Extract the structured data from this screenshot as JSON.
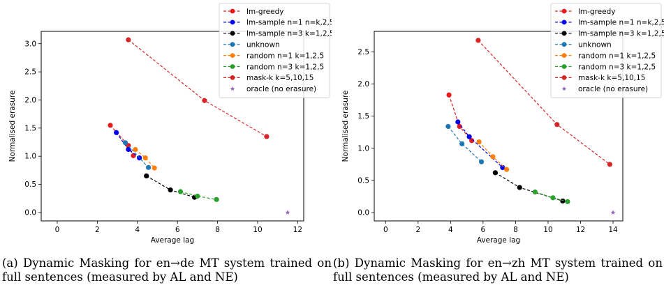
{
  "chart_data": [
    {
      "type": "line",
      "xlabel": "Average lag",
      "ylabel": "Normalised erasure",
      "xlim": [
        -0.8,
        12.3
      ],
      "ylim": [
        -0.15,
        3.22
      ],
      "xticks": [
        0,
        2,
        4,
        6,
        8,
        10,
        12
      ],
      "yticks": [
        0.0,
        0.5,
        1.0,
        1.5,
        2.0,
        2.5,
        3.0
      ],
      "ytick_labels": [
        "0.0",
        "0.5",
        "1.0",
        "1.5",
        "2.0",
        "2.5",
        "3.0"
      ],
      "legend_position": "top-right",
      "caption": "(a) Dynamic Masking for en→de MT system trained on full sentences (measured by AL and NE)",
      "series": [
        {
          "name": "lm-greedy",
          "color": "#e41a1c",
          "dashed": true,
          "x": [
            2.65,
            3.55,
            3.8
          ],
          "y": [
            1.55,
            1.19,
            1.01
          ]
        },
        {
          "name": "lm-sample n=1 n=k,2,5",
          "color": "#0000ee",
          "dashed": true,
          "x": [
            2.95,
            3.55,
            4.1
          ],
          "y": [
            1.42,
            1.12,
            0.97
          ]
        },
        {
          "name": "lm-sample n=3 k=1,2,5",
          "color": "#000000",
          "dashed": true,
          "x": [
            4.45,
            5.65,
            6.85
          ],
          "y": [
            0.65,
            0.4,
            0.27
          ]
        },
        {
          "name": "unknown",
          "color": "#1f77b4",
          "dashed": true,
          "x": [
            3.4,
            4.55
          ],
          "y": [
            1.24,
            0.8
          ]
        },
        {
          "name": "random n=1 k=1,2,5",
          "color": "#ff7f0e",
          "dashed": true,
          "x": [
            3.9,
            4.4,
            4.85
          ],
          "y": [
            1.12,
            0.97,
            0.79
          ]
        },
        {
          "name": "random n=3 k=1,2,5",
          "color": "#2ca02c",
          "dashed": true,
          "x": [
            6.15,
            7.0,
            7.95
          ],
          "y": [
            0.37,
            0.29,
            0.23
          ]
        },
        {
          "name": "mask-k k=5,10,15",
          "color": "#d62728",
          "dashed": true,
          "x": [
            3.55,
            7.35,
            10.45
          ],
          "y": [
            3.07,
            1.99,
            1.35
          ]
        },
        {
          "name": "oracle (no erasure)",
          "color": "#9467bd",
          "marker": "star",
          "x": [
            11.5
          ],
          "y": [
            0.0
          ]
        }
      ]
    },
    {
      "type": "line",
      "xlabel": "Average lag",
      "ylabel": "Normalised erasure",
      "xlim": [
        -0.7,
        14.6
      ],
      "ylim": [
        -0.13,
        2.82
      ],
      "xticks": [
        0,
        2,
        4,
        6,
        8,
        10,
        12,
        14
      ],
      "yticks": [
        0.0,
        0.5,
        1.0,
        1.5,
        2.0,
        2.5
      ],
      "ytick_labels": [
        "0.0",
        "0.5",
        "1.0",
        "1.5",
        "2.0",
        "2.5"
      ],
      "legend_position": "top-right",
      "caption": "(b) Dynamic Masking for en→zh MT system trained on full sentences (measured by AL and NE)",
      "series": [
        {
          "name": "lm-greedy",
          "color": "#e41a1c",
          "dashed": true,
          "x": [
            3.9,
            4.55,
            5.3
          ],
          "y": [
            1.83,
            1.34,
            1.12
          ]
        },
        {
          "name": "lm-sample n=1 n=k,2,5",
          "color": "#0000ee",
          "dashed": true,
          "x": [
            4.45,
            5.15,
            7.2
          ],
          "y": [
            1.41,
            1.18,
            0.7
          ]
        },
        {
          "name": "lm-sample n=3 k=1,2,5",
          "color": "#000000",
          "dashed": true,
          "x": [
            6.75,
            8.25,
            10.9
          ],
          "y": [
            0.62,
            0.39,
            0.18
          ]
        },
        {
          "name": "unknown",
          "color": "#1f77b4",
          "dashed": true,
          "x": [
            3.85,
            4.7,
            5.9
          ],
          "y": [
            1.34,
            1.07,
            0.79
          ]
        },
        {
          "name": "random n=1 k=1,2,5",
          "color": "#ff7f0e",
          "dashed": true,
          "x": [
            5.75,
            6.6,
            7.45
          ],
          "y": [
            1.1,
            0.87,
            0.67
          ]
        },
        {
          "name": "random n=3 k=1,2,5",
          "color": "#2ca02c",
          "dashed": true,
          "x": [
            9.2,
            10.3,
            11.2
          ],
          "y": [
            0.32,
            0.23,
            0.17
          ]
        },
        {
          "name": "mask-k k=5,10,15",
          "color": "#d62728",
          "dashed": true,
          "x": [
            5.7,
            10.55,
            13.8
          ],
          "y": [
            2.68,
            1.37,
            0.75
          ]
        },
        {
          "name": "oracle (no erasure)",
          "color": "#9467bd",
          "marker": "star",
          "x": [
            14.0
          ],
          "y": [
            0.0
          ]
        }
      ]
    }
  ]
}
